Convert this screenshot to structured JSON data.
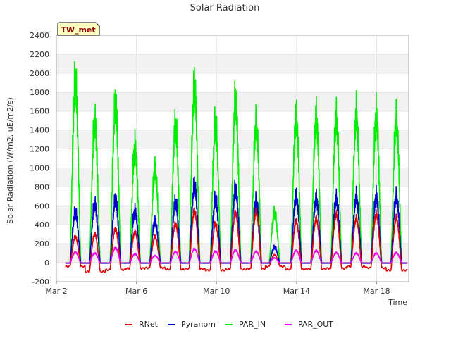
{
  "chart_data": {
    "type": "line",
    "title": "Solar Radiation",
    "xlabel": "Time",
    "ylabel": "Solar Radiation (W/m2, uE/m2/s)",
    "station_label": "TW_met",
    "x_unit": "days since Mar 2",
    "xlim": [
      0,
      17.6
    ],
    "ylim": [
      -200,
      2400
    ],
    "x_ticks": [
      {
        "value": 0,
        "label": "Mar 2"
      },
      {
        "value": 4,
        "label": "Mar 6"
      },
      {
        "value": 8,
        "label": "Mar 10"
      },
      {
        "value": 12,
        "label": "Mar 14"
      },
      {
        "value": 16,
        "label": "Mar 18"
      }
    ],
    "y_ticks": [
      -200,
      0,
      200,
      400,
      600,
      800,
      1000,
      1200,
      1400,
      1600,
      1800,
      2000,
      2200,
      2400
    ],
    "grid": true,
    "legend_position": "bottom",
    "days": [
      {
        "noon": 0.95,
        "peaks": {
          "RNet": 300,
          "Pyranom": 620,
          "PAR_IN": 2230,
          "PAR_OUT": 120
        },
        "night": {
          "RNet": -40
        }
      },
      {
        "noon": 1.92,
        "peaks": {
          "RNet": 330,
          "Pyranom": 720,
          "PAR_IN": 1730,
          "PAR_OUT": 110
        },
        "night": {
          "RNet": -95
        }
      },
      {
        "noon": 2.95,
        "peaks": {
          "RNet": 390,
          "Pyranom": 780,
          "PAR_IN": 1950,
          "PAR_OUT": 170
        },
        "night": {
          "RNet": -75
        }
      },
      {
        "noon": 3.93,
        "peaks": {
          "RNet": 360,
          "Pyranom": 640,
          "PAR_IN": 1430,
          "PAR_OUT": 100
        },
        "night": {
          "RNet": -60
        }
      },
      {
        "noon": 4.93,
        "peaks": {
          "RNet": 300,
          "Pyranom": 510,
          "PAR_IN": 1150,
          "PAR_OUT": 80
        },
        "night": {
          "RNet": -55
        }
      },
      {
        "noon": 5.95,
        "peaks": {
          "RNet": 450,
          "Pyranom": 750,
          "PAR_IN": 1690,
          "PAR_OUT": 125
        },
        "night": {
          "RNet": -70
        }
      },
      {
        "noon": 6.9,
        "peaks": {
          "RNet": 600,
          "Pyranom": 960,
          "PAR_IN": 2180,
          "PAR_OUT": 160
        },
        "night": {
          "RNet": -65
        }
      },
      {
        "noon": 7.95,
        "peaks": {
          "RNet": 450,
          "Pyranom": 780,
          "PAR_IN": 1700,
          "PAR_OUT": 130
        },
        "night": {
          "RNet": -80
        }
      },
      {
        "noon": 8.95,
        "peaks": {
          "RNet": 580,
          "Pyranom": 910,
          "PAR_IN": 2000,
          "PAR_OUT": 145
        },
        "night": {
          "RNet": -70
        }
      },
      {
        "noon": 9.98,
        "peaks": {
          "RNet": 590,
          "Pyranom": 780,
          "PAR_IN": 1730,
          "PAR_OUT": 130
        },
        "night": {
          "RNet": -65
        }
      },
      {
        "noon": 10.9,
        "peaks": {
          "RNet": 90,
          "Pyranom": 190,
          "PAR_IN": 610,
          "PAR_OUT": 55
        },
        "night": {
          "RNet": -40
        }
      },
      {
        "noon": 11.98,
        "peaks": {
          "RNet": 480,
          "Pyranom": 820,
          "PAR_IN": 1790,
          "PAR_OUT": 140
        },
        "night": {
          "RNet": -70
        }
      },
      {
        "noon": 12.98,
        "peaks": {
          "RNet": 510,
          "Pyranom": 800,
          "PAR_IN": 1800,
          "PAR_OUT": 140
        },
        "night": {
          "RNet": -65
        }
      },
      {
        "noon": 13.98,
        "peaks": {
          "RNet": 560,
          "Pyranom": 790,
          "PAR_IN": 1770,
          "PAR_OUT": 115
        },
        "night": {
          "RNet": -60
        }
      },
      {
        "noon": 14.98,
        "peaks": {
          "RNet": 510,
          "Pyranom": 810,
          "PAR_IN": 1820,
          "PAR_OUT": 110
        },
        "night": {
          "RNet": -40
        }
      },
      {
        "noon": 15.98,
        "peaks": {
          "RNet": 560,
          "Pyranom": 820,
          "PAR_IN": 1810,
          "PAR_OUT": 110
        },
        "night": {
          "RNet": -55
        }
      },
      {
        "noon": 16.98,
        "peaks": {
          "RNet": 520,
          "Pyranom": 820,
          "PAR_IN": 1760,
          "PAR_OUT": 115
        },
        "night": {
          "RNet": -80
        }
      }
    ],
    "series": [
      {
        "name": "RNet",
        "color": "#dd0000"
      },
      {
        "name": "Pyranom",
        "color": "#0000cc"
      },
      {
        "name": "PAR_IN",
        "color": "#00ee00"
      },
      {
        "name": "PAR_OUT",
        "color": "#ee00ee"
      }
    ]
  }
}
